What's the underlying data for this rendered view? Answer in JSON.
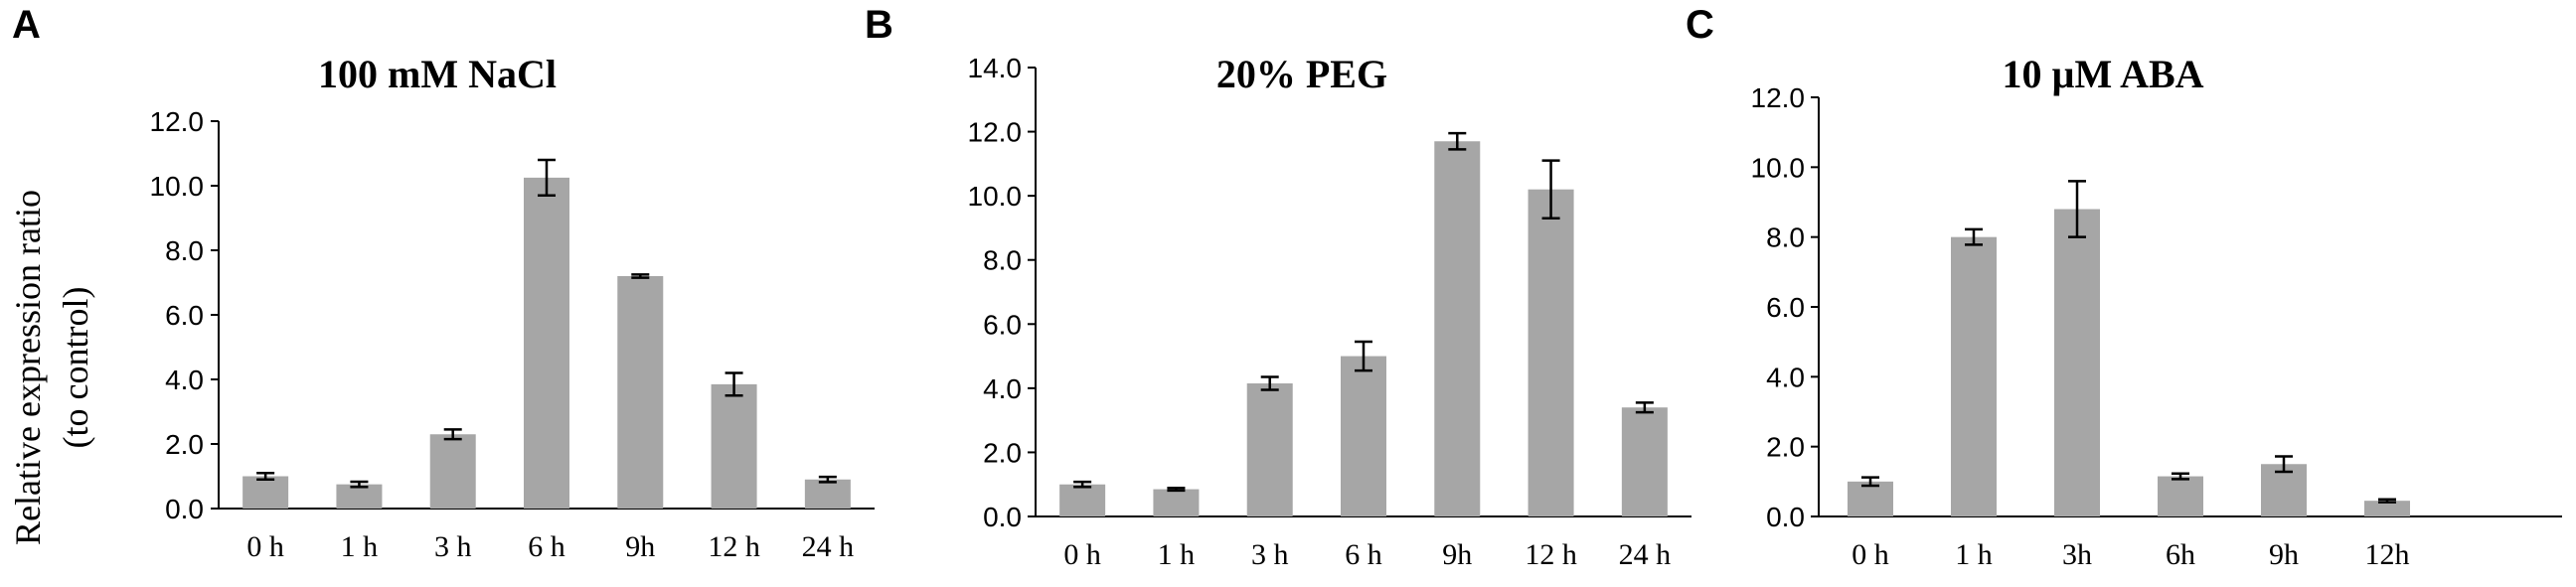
{
  "figure": {
    "ylabel_line1": "Relative expression ratio",
    "ylabel_line2": "(to control)"
  },
  "chart_data": [
    {
      "panel": "A",
      "type": "bar",
      "title": "100 mM NaCl",
      "categories": [
        "0 h",
        "1 h",
        "3 h",
        "6 h",
        "9h",
        "12 h",
        "24 h"
      ],
      "values": [
        1.0,
        0.75,
        2.3,
        10.25,
        7.2,
        3.85,
        0.9
      ],
      "errors": [
        0.1,
        0.08,
        0.15,
        0.55,
        0.05,
        0.35,
        0.08
      ],
      "ylim": [
        0,
        12
      ],
      "yticks": [
        "0.0",
        "2.0",
        "4.0",
        "6.0",
        "8.0",
        "10.0",
        "12.0"
      ],
      "ylabel": "Relative expression ratio (to control)",
      "bar_color": "#a6a6a6",
      "grid": false
    },
    {
      "panel": "B",
      "type": "bar",
      "title": "20% PEG",
      "categories": [
        "0 h",
        "1 h",
        "3 h",
        "6 h",
        "9h",
        "12 h",
        "24 h"
      ],
      "values": [
        1.0,
        0.85,
        4.15,
        5.0,
        11.7,
        10.2,
        3.4
      ],
      "errors": [
        0.08,
        0.04,
        0.2,
        0.45,
        0.25,
        0.9,
        0.15
      ],
      "ylim": [
        0,
        14
      ],
      "yticks": [
        "0.0",
        "2.0",
        "4.0",
        "6.0",
        "8.0",
        "10.0",
        "12.0",
        "14.0"
      ],
      "bar_color": "#a6a6a6",
      "grid": false
    },
    {
      "panel": "C",
      "type": "bar",
      "title": "10 µM ABA",
      "categories": [
        "0 h",
        "1 h",
        "3h",
        "6h",
        "9h",
        "12h"
      ],
      "values": [
        1.0,
        8.0,
        8.8,
        1.15,
        1.5,
        0.45
      ],
      "errors": [
        0.12,
        0.22,
        0.8,
        0.08,
        0.22,
        0.04
      ],
      "ylim": [
        0,
        12
      ],
      "yticks": [
        "0.0",
        "2.0",
        "4.0",
        "6.0",
        "8.0",
        "10.0",
        "12.0"
      ],
      "bar_color": "#a6a6a6",
      "grid": false
    }
  ]
}
